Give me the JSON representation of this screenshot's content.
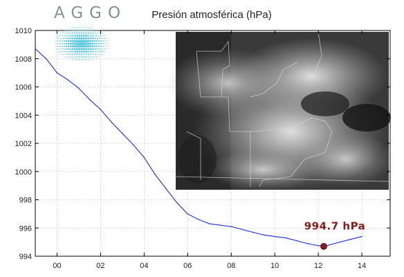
{
  "logo": {
    "text": "AGGO"
  },
  "chart_data": {
    "type": "line",
    "title": "Presión atmosférica (hPa)",
    "xlabel": "",
    "ylabel": "",
    "x_ticks": [
      "00",
      "02",
      "04",
      "06",
      "08",
      "10",
      "12",
      "14"
    ],
    "y_ticks": [
      994,
      996,
      998,
      1000,
      1002,
      1004,
      1006,
      1008,
      1010
    ],
    "xlim": [
      -1.0,
      15.3
    ],
    "ylim": [
      994,
      1010
    ],
    "grid": true,
    "series": [
      {
        "name": "",
        "color": "#2a3bd6",
        "x": [
          -1.0,
          -0.5,
          0.0,
          0.5,
          1.0,
          1.5,
          2.0,
          2.5,
          3.0,
          3.5,
          4.0,
          4.5,
          5.0,
          5.5,
          6.0,
          6.5,
          7.0,
          7.5,
          8.0,
          8.5,
          9.0,
          9.5,
          10.0,
          10.5,
          11.0,
          11.5,
          12.0,
          12.25,
          12.5,
          13.0,
          13.5,
          14.0
        ],
        "y": [
          1008.7,
          1008.0,
          1007.0,
          1006.5,
          1005.9,
          1005.1,
          1004.4,
          1003.5,
          1002.7,
          1001.9,
          1001.0,
          999.8,
          998.8,
          997.8,
          997.0,
          996.6,
          996.3,
          996.2,
          996.1,
          995.9,
          995.7,
          995.5,
          995.4,
          995.3,
          995.1,
          994.9,
          994.75,
          994.7,
          994.8,
          995.0,
          995.2,
          995.4
        ]
      }
    ],
    "annotation": {
      "label": "994.7 hPa",
      "x": 12.25,
      "y": 994.7,
      "color": "#8b1a1a"
    },
    "inset": {
      "description_visible": false
    }
  }
}
